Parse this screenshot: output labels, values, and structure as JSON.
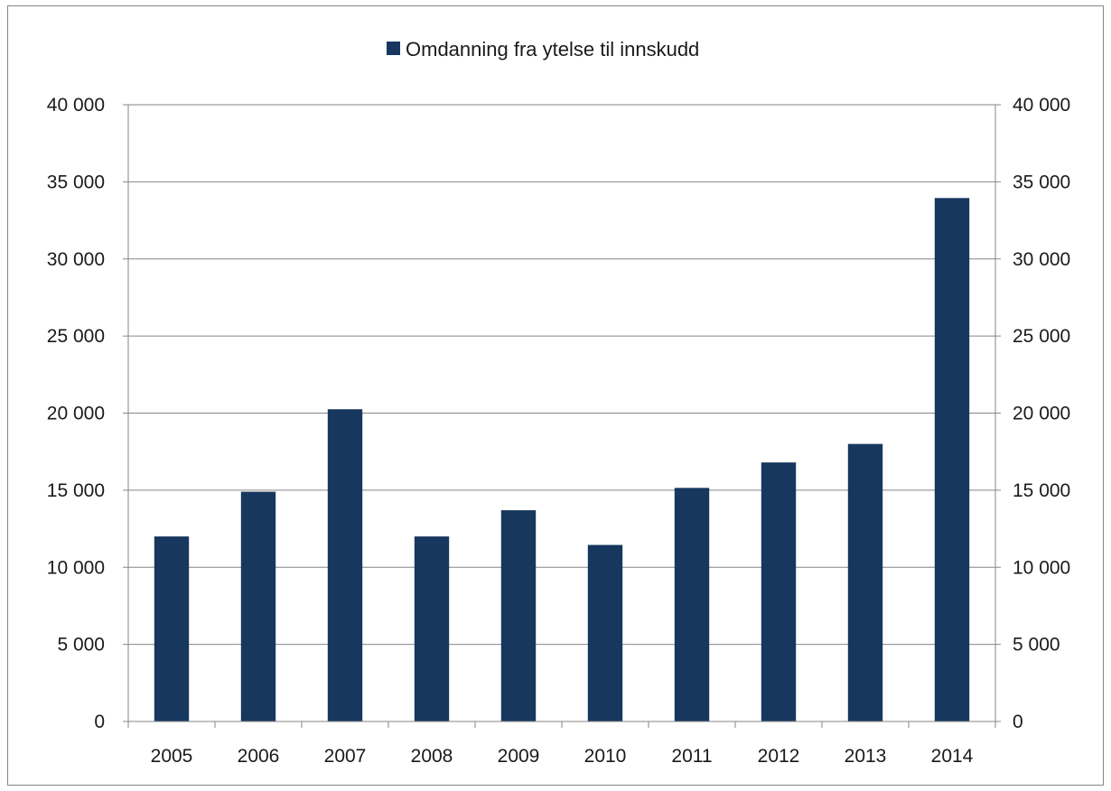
{
  "chart_data": {
    "type": "bar",
    "title": "",
    "xlabel": "",
    "ylabel": "",
    "categories": [
      "2005",
      "2006",
      "2007",
      "2008",
      "2009",
      "2010",
      "2011",
      "2012",
      "2013",
      "2014"
    ],
    "series": [
      {
        "name": "Omdanning fra ytelse til innskudd",
        "color": "#17375e",
        "values": [
          12000,
          14900,
          20250,
          12000,
          13700,
          11450,
          15150,
          16800,
          18000,
          33950
        ]
      }
    ],
    "ylim": [
      0,
      40000
    ],
    "y_ticks": [
      "0",
      "5 000",
      "10 000",
      "15 000",
      "20 000",
      "25 000",
      "30 000",
      "35 000",
      "40 000"
    ],
    "y_tick_values": [
      0,
      5000,
      10000,
      15000,
      20000,
      25000,
      30000,
      35000,
      40000
    ],
    "secondary_y_axis": true,
    "grid": true,
    "legend_position": "top-center",
    "colors": {
      "bar": "#17375e",
      "grid": "#868686",
      "frame": "#868686"
    }
  }
}
